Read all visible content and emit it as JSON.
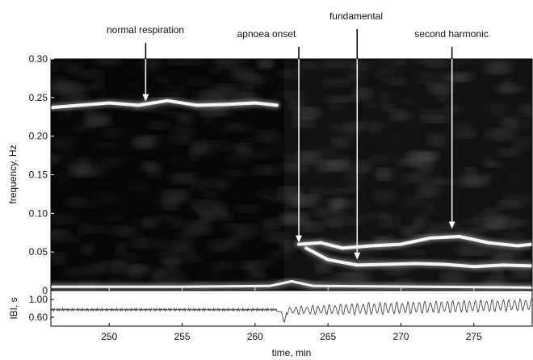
{
  "chart_data": [
    {
      "type": "heatmap",
      "title": "",
      "xlabel": "",
      "ylabel": "frequency, Hz",
      "xlim": [
        246,
        279
      ],
      "ylim": [
        0,
        0.3
      ],
      "yticks": [
        0,
        0.05,
        0.1,
        0.15,
        0.2,
        0.25,
        0.3
      ],
      "ytick_labels": [
        "0",
        "0.05",
        "0.10",
        "0.15",
        "0.20",
        "0.25",
        "0.30"
      ],
      "colormap": "grayscale, dark background, bright ridges",
      "ridges": [
        {
          "id": "normal-respiration",
          "x": [
            246,
            248,
            250,
            252,
            254,
            256,
            258,
            260,
            261.5
          ],
          "y": [
            0.237,
            0.24,
            0.243,
            0.24,
            0.246,
            0.24,
            0.241,
            0.243,
            0.24
          ]
        },
        {
          "id": "fundamental",
          "x": [
            263.5,
            265,
            267,
            269,
            271,
            273,
            275,
            277,
            279
          ],
          "y": [
            0.055,
            0.04,
            0.033,
            0.034,
            0.035,
            0.034,
            0.031,
            0.033,
            0.032
          ]
        },
        {
          "id": "second-harmonic",
          "x": [
            263,
            264.5,
            266,
            268,
            270,
            272,
            274,
            276,
            278,
            279
          ],
          "y": [
            0.06,
            0.062,
            0.055,
            0.058,
            0.06,
            0.068,
            0.07,
            0.062,
            0.058,
            0.06
          ]
        },
        {
          "id": "baseline",
          "x": [
            246,
            255,
            261,
            262.5,
            264,
            279
          ],
          "y": [
            0.005,
            0.005,
            0.006,
            0.012,
            0.006,
            0.004
          ]
        }
      ],
      "annotations": [
        {
          "text": "normal respiration",
          "x": 252.5,
          "y": 0.245
        },
        {
          "text": "apnoea onset",
          "x": 263.0,
          "y": 0.062
        },
        {
          "text": "fundamental",
          "x": 267.0,
          "y": 0.04
        },
        {
          "text": "second harmonic",
          "x": 273.5,
          "y": 0.08
        }
      ]
    },
    {
      "type": "line",
      "title": "",
      "xlabel": "time, min",
      "ylabel": "IBI, s",
      "xlim": [
        246,
        279
      ],
      "ylim": [
        0.4,
        1.2
      ],
      "xticks": [
        250,
        255,
        260,
        265,
        270,
        275
      ],
      "xtick_labels": [
        "250",
        "255",
        "260",
        "265",
        "270",
        "275"
      ],
      "yticks": [
        0.6,
        1.0
      ],
      "ytick_labels": [
        "0.60",
        "1.00"
      ],
      "series": [
        {
          "color": "#444444",
          "segments": [
            {
              "x_from": 246,
              "x_to": 261.5,
              "mean": 0.77,
              "amplitude": 0.02,
              "cycles_per_min": 14
            },
            {
              "x_from": 262.2,
              "x_to": 279,
              "mean_start": 0.75,
              "mean_end": 0.88,
              "amplitude": 0.12,
              "cycles_per_min": 2.6
            }
          ],
          "dip": {
            "x": 262.0,
            "min": 0.48
          }
        }
      ]
    }
  ]
}
